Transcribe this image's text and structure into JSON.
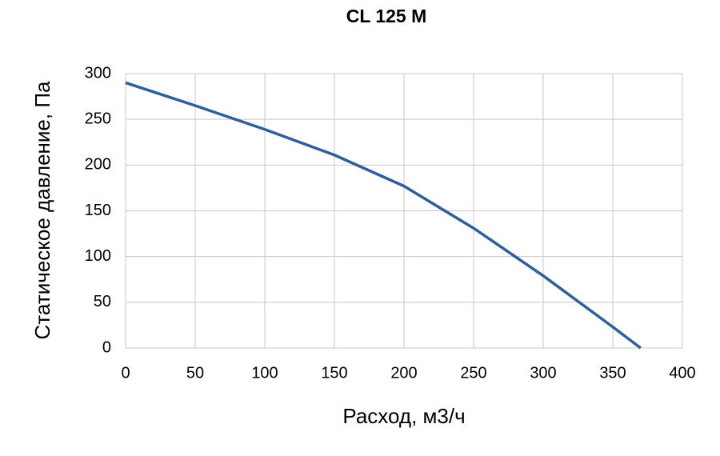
{
  "chart_data": {
    "type": "line",
    "title": "CL 125 M",
    "xlabel": "Расход, м3/ч",
    "ylabel": "Статическое давление, Па",
    "x": [
      0,
      50,
      100,
      150,
      200,
      250,
      300,
      350,
      370
    ],
    "series": [
      {
        "name": "CL 125 M",
        "color": "#2e5e9e",
        "values": [
          290,
          265,
          239,
          211,
          177,
          131,
          79,
          23,
          0
        ]
      }
    ],
    "xlim": [
      0,
      400
    ],
    "xticks": [
      0,
      50,
      100,
      150,
      200,
      250,
      300,
      350,
      400
    ],
    "ylim": [
      0,
      300
    ],
    "yticks": [
      0,
      50,
      100,
      150,
      200,
      250,
      300
    ],
    "grid": true
  }
}
